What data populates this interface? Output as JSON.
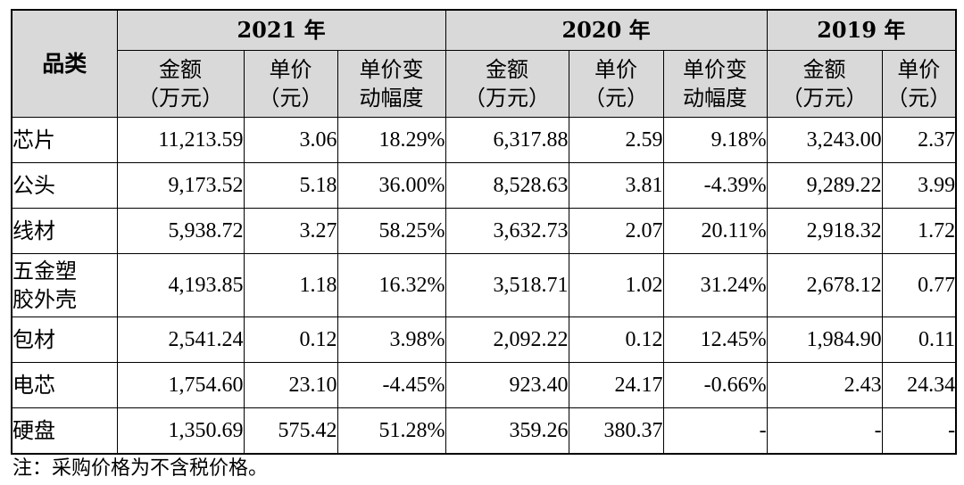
{
  "header": {
    "category": "品类",
    "years": [
      "2021 年",
      "2020 年",
      "2019 年"
    ],
    "sub": {
      "amount": [
        "金额",
        "（万元）"
      ],
      "price": [
        "单价",
        "（元）"
      ],
      "change": [
        "单价变",
        "动幅度"
      ]
    }
  },
  "rows": [
    {
      "label": [
        "芯片"
      ],
      "v": [
        "11,213.59",
        "3.06",
        "18.29%",
        "6,317.88",
        "2.59",
        "9.18%",
        "3,243.00",
        "2.37"
      ]
    },
    {
      "label": [
        "公头"
      ],
      "v": [
        "9,173.52",
        "5.18",
        "36.00%",
        "8,528.63",
        "3.81",
        "-4.39%",
        "9,289.22",
        "3.99"
      ]
    },
    {
      "label": [
        "线材"
      ],
      "v": [
        "5,938.72",
        "3.27",
        "58.25%",
        "3,632.73",
        "2.07",
        "20.11%",
        "2,918.32",
        "1.72"
      ]
    },
    {
      "label": [
        "五金塑",
        "胶外壳"
      ],
      "v": [
        "4,193.85",
        "1.18",
        "16.32%",
        "3,518.71",
        "1.02",
        "31.24%",
        "2,678.12",
        "0.77"
      ]
    },
    {
      "label": [
        "包材"
      ],
      "v": [
        "2,541.24",
        "0.12",
        "3.98%",
        "2,092.22",
        "0.12",
        "12.45%",
        "1,984.90",
        "0.11"
      ]
    },
    {
      "label": [
        "电芯"
      ],
      "v": [
        "1,754.60",
        "23.10",
        "-4.45%",
        "923.40",
        "24.17",
        "-0.66%",
        "2.43",
        "24.34"
      ]
    },
    {
      "label": [
        "硬盘"
      ],
      "v": [
        "1,350.69",
        "575.42",
        "51.28%",
        "359.26",
        "380.37",
        "-",
        "-",
        "-"
      ]
    }
  ],
  "note": "注：采购价格为不含税价格。"
}
